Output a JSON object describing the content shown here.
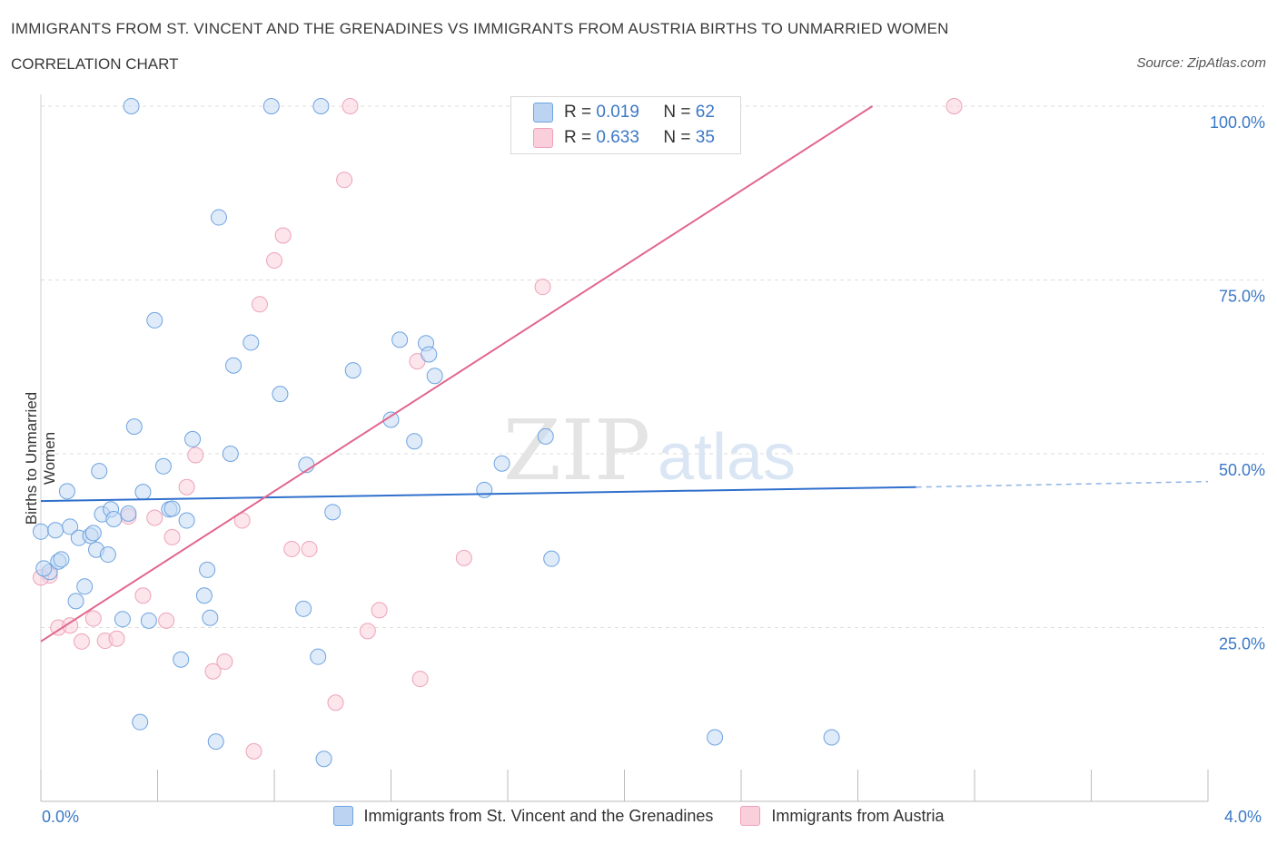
{
  "header": {
    "title": "IMMIGRANTS FROM ST. VINCENT AND THE GRENADINES VS IMMIGRANTS FROM AUSTRIA BIRTHS TO UNMARRIED WOMEN",
    "subtitle": "CORRELATION CHART",
    "source": "Source: ZipAtlas.com"
  },
  "legend": {
    "blue": {
      "r_label": "R =",
      "r_value": "0.019",
      "n_label": "N =",
      "n_value": "62",
      "color": "#6ea3e0"
    },
    "pink": {
      "r_label": "R =",
      "r_value": "0.633",
      "n_label": "N =",
      "n_value": "35",
      "color": "#f0a0b8"
    }
  },
  "watermark": {
    "zip": "ZIP",
    "atlas": "atlas"
  },
  "chart_data": {
    "type": "scatter",
    "title": "IMMIGRANTS FROM ST. VINCENT AND THE GRENADINES VS IMMIGRANTS FROM AUSTRIA BIRTHS TO UNMARRIED WOMEN",
    "xlabel": "",
    "ylabel": "Births to Unmarried Women",
    "xlim": [
      0,
      4
    ],
    "ylim": [
      0,
      100
    ],
    "x_tick_labels": [
      "0.0%",
      "4.0%"
    ],
    "y_tick_labels": [
      "100.0%",
      "75.0%",
      "50.0%",
      "25.0%"
    ],
    "y_ticks": [
      100,
      75,
      50,
      25
    ],
    "grid": true,
    "legend_position": "top-center",
    "series": [
      {
        "name": "Immigrants from St. Vincent and the Grenadines",
        "color": "#6ea3e0",
        "trend": {
          "x0": 0.0,
          "y0": 43.2,
          "x1": 3.0,
          "y1": 45.2,
          "dashed_to": 4.0,
          "dashed_y": 46.0
        },
        "points": [
          [
            0.0,
            38.8
          ],
          [
            0.03,
            33.0
          ],
          [
            0.05,
            39.0
          ],
          [
            0.06,
            34.5
          ],
          [
            0.07,
            34.8
          ],
          [
            0.09,
            44.6
          ],
          [
            0.1,
            39.5
          ],
          [
            0.12,
            28.8
          ],
          [
            0.13,
            37.9
          ],
          [
            0.15,
            30.9
          ],
          [
            0.17,
            38.2
          ],
          [
            0.18,
            38.6
          ],
          [
            0.19,
            36.2
          ],
          [
            0.2,
            47.5
          ],
          [
            0.21,
            41.3
          ],
          [
            0.23,
            35.5
          ],
          [
            0.24,
            42.0
          ],
          [
            0.25,
            40.6
          ],
          [
            0.28,
            26.2
          ],
          [
            0.3,
            41.4
          ],
          [
            0.31,
            100.0
          ],
          [
            0.32,
            53.9
          ],
          [
            0.34,
            11.4
          ],
          [
            0.35,
            44.5
          ],
          [
            0.37,
            26.0
          ],
          [
            0.39,
            69.2
          ],
          [
            0.42,
            48.2
          ],
          [
            0.44,
            42.0
          ],
          [
            0.45,
            42.1
          ],
          [
            0.48,
            20.4
          ],
          [
            0.5,
            40.4
          ],
          [
            0.52,
            52.1
          ],
          [
            0.56,
            29.6
          ],
          [
            0.57,
            33.3
          ],
          [
            0.58,
            26.4
          ],
          [
            0.6,
            8.6
          ],
          [
            0.61,
            84.0
          ],
          [
            0.65,
            50.0
          ],
          [
            0.66,
            62.7
          ],
          [
            0.72,
            66.0
          ],
          [
            0.79,
            100.0
          ],
          [
            0.82,
            58.6
          ],
          [
            0.9,
            27.7
          ],
          [
            0.91,
            48.4
          ],
          [
            0.95,
            20.8
          ],
          [
            0.96,
            100.0
          ],
          [
            0.97,
            6.1
          ],
          [
            1.0,
            41.6
          ],
          [
            1.07,
            62.0
          ],
          [
            1.2,
            54.9
          ],
          [
            1.23,
            66.4
          ],
          [
            1.28,
            51.8
          ],
          [
            1.32,
            65.9
          ],
          [
            1.33,
            64.3
          ],
          [
            1.35,
            61.2
          ],
          [
            1.52,
            44.8
          ],
          [
            1.58,
            48.6
          ],
          [
            1.73,
            52.5
          ],
          [
            1.75,
            34.9
          ],
          [
            2.31,
            9.2
          ],
          [
            2.71,
            9.2
          ],
          [
            0.01,
            33.5
          ]
        ]
      },
      {
        "name": "Immigrants from Austria",
        "color": "#f0a0b8",
        "trend": {
          "x0": 0.0,
          "y0": 23.0,
          "x1": 2.85,
          "y1": 100.0
        },
        "points": [
          [
            0.03,
            32.5
          ],
          [
            0.06,
            25.0
          ],
          [
            0.1,
            25.3
          ],
          [
            0.14,
            23.0
          ],
          [
            0.18,
            26.3
          ],
          [
            0.22,
            23.1
          ],
          [
            0.26,
            23.4
          ],
          [
            0.3,
            41.0
          ],
          [
            0.35,
            29.6
          ],
          [
            0.39,
            40.8
          ],
          [
            0.43,
            26.0
          ],
          [
            0.45,
            38.0
          ],
          [
            0.5,
            45.2
          ],
          [
            0.53,
            49.8
          ],
          [
            0.59,
            18.7
          ],
          [
            0.63,
            20.1
          ],
          [
            0.69,
            40.4
          ],
          [
            0.73,
            7.2
          ],
          [
            0.75,
            71.5
          ],
          [
            0.8,
            77.8
          ],
          [
            0.83,
            81.4
          ],
          [
            0.86,
            36.3
          ],
          [
            0.92,
            36.3
          ],
          [
            1.01,
            14.2
          ],
          [
            1.04,
            89.4
          ],
          [
            1.06,
            100.0
          ],
          [
            1.12,
            24.5
          ],
          [
            1.16,
            27.5
          ],
          [
            1.29,
            63.3
          ],
          [
            1.3,
            17.6
          ],
          [
            1.45,
            35.0
          ],
          [
            1.72,
            74.0
          ],
          [
            2.15,
            100.0
          ],
          [
            3.13,
            100.0
          ],
          [
            0.0,
            32.2
          ]
        ]
      }
    ]
  },
  "bottom_legend": {
    "blue_label": "Immigrants from St. Vincent and the Grenadines",
    "pink_label": "Immigrants from Austria"
  }
}
